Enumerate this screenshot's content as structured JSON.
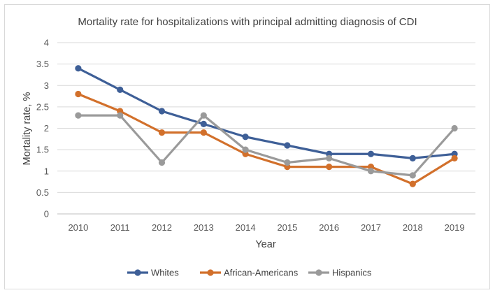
{
  "chart_data": {
    "type": "line",
    "title": "Mortality rate for hospitalizations with principal admitting diagnosis of CDI",
    "xlabel": "Year",
    "ylabel": "Mortality rate, %",
    "categories": [
      "2010",
      "2011",
      "2012",
      "2013",
      "2014",
      "2015",
      "2016",
      "2017",
      "2018",
      "2019"
    ],
    "ylim": [
      0,
      4
    ],
    "yticks": [
      "0",
      "0.5",
      "1",
      "1.5",
      "2",
      "2.5",
      "3",
      "3.5",
      "4"
    ],
    "grid": true,
    "legend_position": "bottom",
    "series": [
      {
        "name": "Whites",
        "color": "#3e5f97",
        "values": [
          3.4,
          2.9,
          2.4,
          2.1,
          1.8,
          1.6,
          1.4,
          1.4,
          1.3,
          1.4
        ]
      },
      {
        "name": "African-Americans",
        "color": "#d2702b",
        "values": [
          2.8,
          2.4,
          1.9,
          1.9,
          1.4,
          1.1,
          1.1,
          1.1,
          0.7,
          1.3
        ]
      },
      {
        "name": "Hispanics",
        "color": "#9a9a9a",
        "values": [
          2.3,
          2.3,
          1.2,
          2.3,
          1.5,
          1.2,
          1.3,
          1.0,
          0.9,
          2.0
        ]
      }
    ]
  }
}
